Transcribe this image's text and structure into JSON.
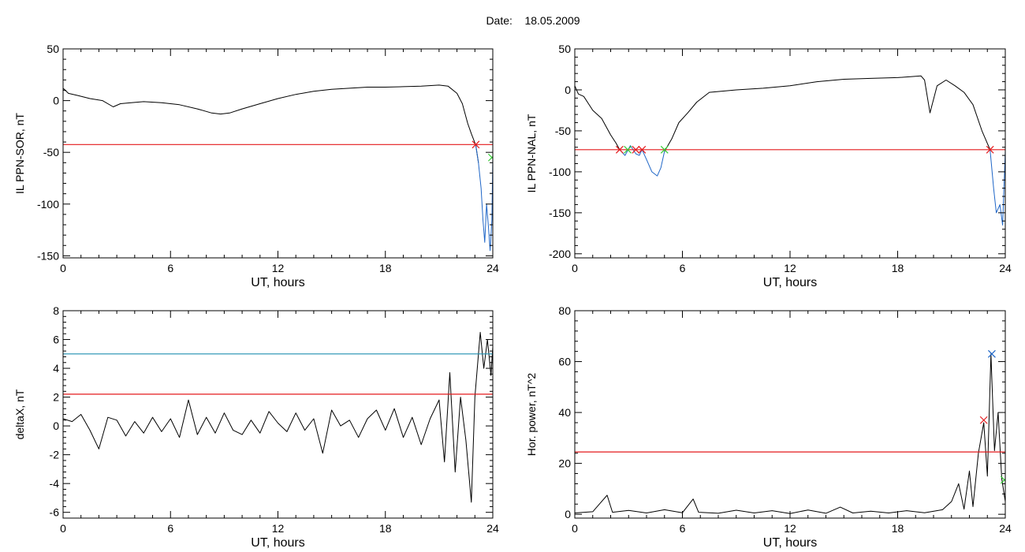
{
  "header": {
    "date_label": "Date:",
    "date_value": "18.05.2009"
  },
  "colors": {
    "trace": "#000000",
    "threshold": "#e41a1c",
    "highlight": "#1f66c7",
    "upper_threshold": "#1f8fb0",
    "marker_green": "#33cc33"
  },
  "chart_data": [
    {
      "type": "line",
      "id": "sor",
      "ylabel": "IL PPN-SOR, nT",
      "xlabel": "UT, hours",
      "xlim": [
        0,
        24
      ],
      "xticks": [
        0,
        6,
        12,
        18,
        24
      ],
      "ylim": [
        -152,
        50
      ],
      "yticks": [
        -150,
        -100,
        -50,
        0,
        50
      ],
      "series": [
        {
          "style": "trace",
          "values": [
            [
              0,
              12
            ],
            [
              0.3,
              7
            ],
            [
              0.8,
              5
            ],
            [
              1.5,
              2
            ],
            [
              2.2,
              0
            ],
            [
              2.8,
              -6
            ],
            [
              3.2,
              -3
            ],
            [
              3.8,
              -2
            ],
            [
              4.5,
              -1
            ],
            [
              5.5,
              -2
            ],
            [
              6.5,
              -4
            ],
            [
              7.5,
              -8
            ],
            [
              8.3,
              -12
            ],
            [
              8.8,
              -13
            ],
            [
              9.3,
              -12
            ],
            [
              10,
              -8
            ],
            [
              11,
              -3
            ],
            [
              12,
              2
            ],
            [
              13,
              6
            ],
            [
              14,
              9
            ],
            [
              15,
              11
            ],
            [
              16,
              12
            ],
            [
              17,
              13
            ],
            [
              18,
              13
            ],
            [
              19,
              13.5
            ],
            [
              20,
              14
            ],
            [
              21,
              15
            ],
            [
              21.5,
              14
            ],
            [
              22,
              7
            ],
            [
              22.3,
              -3
            ],
            [
              22.6,
              -22
            ],
            [
              22.8,
              -32
            ],
            [
              23.05,
              -43
            ],
            [
              23.2,
              -60
            ]
          ]
        },
        {
          "style": "highlight",
          "values": [
            [
              23.05,
              -43
            ],
            [
              23.2,
              -60
            ],
            [
              23.35,
              -85
            ],
            [
              23.45,
              -115
            ],
            [
              23.55,
              -137
            ],
            [
              23.65,
              -100
            ],
            [
              23.75,
              -120
            ],
            [
              23.85,
              -145
            ],
            [
              23.95,
              -115
            ],
            [
              24,
              -55
            ]
          ]
        },
        {
          "style": "threshold",
          "values": [
            [
              0,
              -42.5
            ],
            [
              24,
              -42.5
            ]
          ]
        }
      ],
      "markers": [
        {
          "x": 23.05,
          "y": -42.5,
          "color": "threshold"
        },
        {
          "x": 23.95,
          "y": -55,
          "color": "marker_green"
        }
      ]
    },
    {
      "type": "line",
      "id": "nal",
      "ylabel": "IL PPN-NAL, nT",
      "xlabel": "UT, hours",
      "xlim": [
        0,
        24
      ],
      "xticks": [
        0,
        6,
        12,
        18,
        24
      ],
      "ylim": [
        -205,
        50
      ],
      "yticks": [
        -200,
        -150,
        -100,
        -50,
        0,
        50
      ],
      "series": [
        {
          "style": "trace",
          "values": [
            [
              0,
              5
            ],
            [
              0.2,
              -5
            ],
            [
              0.5,
              -8
            ],
            [
              1,
              -25
            ],
            [
              1.5,
              -35
            ],
            [
              2,
              -55
            ],
            [
              2.3,
              -65
            ],
            [
              2.5,
              -73
            ]
          ]
        },
        {
          "style": "highlight",
          "values": [
            [
              2.5,
              -73
            ],
            [
              2.8,
              -80
            ],
            [
              3.1,
              -68
            ],
            [
              3.4,
              -78
            ],
            [
              3.6,
              -80
            ],
            [
              3.75,
              -73
            ],
            [
              4.0,
              -85
            ],
            [
              4.3,
              -100
            ],
            [
              4.6,
              -105
            ],
            [
              4.8,
              -95
            ],
            [
              5.0,
              -75
            ]
          ]
        },
        {
          "style": "trace",
          "values": [
            [
              5.0,
              -75
            ],
            [
              5.4,
              -60
            ],
            [
              5.8,
              -40
            ],
            [
              6.3,
              -28
            ],
            [
              6.8,
              -15
            ],
            [
              7.5,
              -3
            ],
            [
              9,
              0
            ],
            [
              10.5,
              2
            ],
            [
              12,
              5
            ],
            [
              13.5,
              10
            ],
            [
              15,
              13
            ],
            [
              16.5,
              14
            ],
            [
              18,
              15
            ],
            [
              19.3,
              17
            ],
            [
              19.5,
              12
            ],
            [
              19.8,
              -28
            ],
            [
              20.2,
              5
            ],
            [
              20.7,
              12
            ],
            [
              21.2,
              5
            ],
            [
              21.7,
              -3
            ],
            [
              22.2,
              -18
            ],
            [
              22.7,
              -50
            ],
            [
              23.15,
              -73
            ]
          ]
        },
        {
          "style": "highlight",
          "values": [
            [
              23.15,
              -73
            ],
            [
              23.35,
              -120
            ],
            [
              23.5,
              -150
            ],
            [
              23.7,
              -140
            ],
            [
              23.85,
              -165
            ],
            [
              24,
              -75
            ]
          ]
        },
        {
          "style": "threshold",
          "values": [
            [
              0,
              -73
            ],
            [
              24,
              -73
            ]
          ]
        }
      ],
      "markers": [
        {
          "x": 2.5,
          "y": -73,
          "color": "threshold"
        },
        {
          "x": 3.4,
          "y": -73,
          "color": "threshold"
        },
        {
          "x": 3.75,
          "y": -73,
          "color": "threshold"
        },
        {
          "x": 23.15,
          "y": -73,
          "color": "threshold"
        },
        {
          "x": 2.95,
          "y": -73,
          "color": "marker_green"
        },
        {
          "x": 5.0,
          "y": -73,
          "color": "marker_green"
        }
      ]
    },
    {
      "type": "line",
      "id": "deltax",
      "ylabel": "deltaX, nT",
      "xlabel": "UT, hours",
      "xlim": [
        0,
        24
      ],
      "xticks": [
        0,
        6,
        12,
        18,
        24
      ],
      "ylim": [
        -6.4,
        8
      ],
      "yticks": [
        -6,
        -4,
        -2,
        0,
        2,
        4,
        6,
        8
      ],
      "series": [
        {
          "style": "trace",
          "values": [
            [
              0,
              0.5
            ],
            [
              0.5,
              0.3
            ],
            [
              1.0,
              0.8
            ],
            [
              1.5,
              -0.3
            ],
            [
              2.0,
              -1.6
            ],
            [
              2.5,
              0.6
            ],
            [
              3.0,
              0.4
            ],
            [
              3.5,
              -0.7
            ],
            [
              4.0,
              0.3
            ],
            [
              4.5,
              -0.5
            ],
            [
              5.0,
              0.6
            ],
            [
              5.5,
              -0.4
            ],
            [
              6.0,
              0.5
            ],
            [
              6.5,
              -0.8
            ],
            [
              7.0,
              1.8
            ],
            [
              7.5,
              -0.6
            ],
            [
              8.0,
              0.6
            ],
            [
              8.5,
              -0.5
            ],
            [
              9.0,
              0.9
            ],
            [
              9.5,
              -0.3
            ],
            [
              10.0,
              -0.6
            ],
            [
              10.5,
              0.4
            ],
            [
              11.0,
              -0.5
            ],
            [
              11.5,
              1.0
            ],
            [
              12.0,
              0.2
            ],
            [
              12.5,
              -0.4
            ],
            [
              13.0,
              0.9
            ],
            [
              13.5,
              -0.3
            ],
            [
              14.0,
              0.5
            ],
            [
              14.5,
              -1.9
            ],
            [
              15.0,
              1.1
            ],
            [
              15.5,
              0.0
            ],
            [
              16.0,
              0.4
            ],
            [
              16.5,
              -0.8
            ],
            [
              17.0,
              0.5
            ],
            [
              17.5,
              1.1
            ],
            [
              18.0,
              -0.3
            ],
            [
              18.5,
              1.2
            ],
            [
              19.0,
              -0.8
            ],
            [
              19.5,
              0.6
            ],
            [
              20.0,
              -1.3
            ],
            [
              20.5,
              0.5
            ],
            [
              21.0,
              1.8
            ],
            [
              21.3,
              -2.5
            ],
            [
              21.6,
              3.7
            ],
            [
              21.9,
              -3.2
            ],
            [
              22.2,
              2.0
            ],
            [
              22.5,
              -1.0
            ],
            [
              22.8,
              -5.3
            ],
            [
              23.0,
              2.0
            ],
            [
              23.3,
              6.5
            ],
            [
              23.5,
              4.0
            ],
            [
              23.7,
              6.0
            ],
            [
              23.9,
              3.5
            ],
            [
              24.0,
              5.5
            ]
          ]
        },
        {
          "style": "threshold",
          "values": [
            [
              0,
              2.2
            ],
            [
              24,
              2.2
            ]
          ]
        },
        {
          "style": "upper_threshold",
          "values": [
            [
              0,
              5.0
            ],
            [
              24,
              5.0
            ]
          ]
        }
      ],
      "markers": []
    },
    {
      "type": "line",
      "id": "hpower",
      "ylabel": "Hor. power, nT^2",
      "xlabel": "UT, hours",
      "xlim": [
        0,
        24
      ],
      "xticks": [
        0,
        6,
        12,
        18,
        24
      ],
      "ylim": [
        -1.5,
        80
      ],
      "yticks": [
        0,
        20,
        40,
        60,
        80
      ],
      "series": [
        {
          "style": "trace",
          "values": [
            [
              0,
              0.5
            ],
            [
              1.0,
              1.0
            ],
            [
              1.8,
              7.5
            ],
            [
              2.1,
              0.8
            ],
            [
              3.0,
              1.5
            ],
            [
              4.0,
              0.5
            ],
            [
              5.0,
              1.8
            ],
            [
              6.0,
              0.6
            ],
            [
              6.6,
              6.0
            ],
            [
              6.9,
              0.8
            ],
            [
              8.0,
              0.4
            ],
            [
              9.0,
              1.6
            ],
            [
              10.0,
              0.5
            ],
            [
              11.0,
              1.4
            ],
            [
              12.0,
              0.3
            ],
            [
              13.0,
              1.7
            ],
            [
              14.0,
              0.4
            ],
            [
              14.8,
              2.8
            ],
            [
              15.5,
              0.5
            ],
            [
              16.5,
              1.2
            ],
            [
              17.5,
              0.5
            ],
            [
              18.5,
              1.4
            ],
            [
              19.5,
              0.6
            ],
            [
              20.5,
              1.8
            ],
            [
              21.0,
              5.0
            ],
            [
              21.4,
              12.0
            ],
            [
              21.7,
              2.0
            ],
            [
              22.0,
              17.0
            ],
            [
              22.2,
              3.0
            ],
            [
              22.5,
              24.0
            ],
            [
              22.8,
              36.0
            ],
            [
              23.0,
              15.0
            ],
            [
              23.2,
              63.0
            ],
            [
              23.4,
              25.0
            ],
            [
              23.6,
              40.0
            ],
            [
              23.8,
              14.0
            ],
            [
              24.0,
              5.0
            ]
          ]
        },
        {
          "style": "threshold",
          "values": [
            [
              0,
              24.5
            ],
            [
              24,
              24.5
            ]
          ]
        }
      ],
      "markers": [
        {
          "x": 22.8,
          "y": 37,
          "color": "threshold"
        },
        {
          "x": 23.25,
          "y": 63,
          "color": "highlight"
        },
        {
          "x": 23.95,
          "y": 13.5,
          "color": "marker_green"
        }
      ]
    }
  ]
}
